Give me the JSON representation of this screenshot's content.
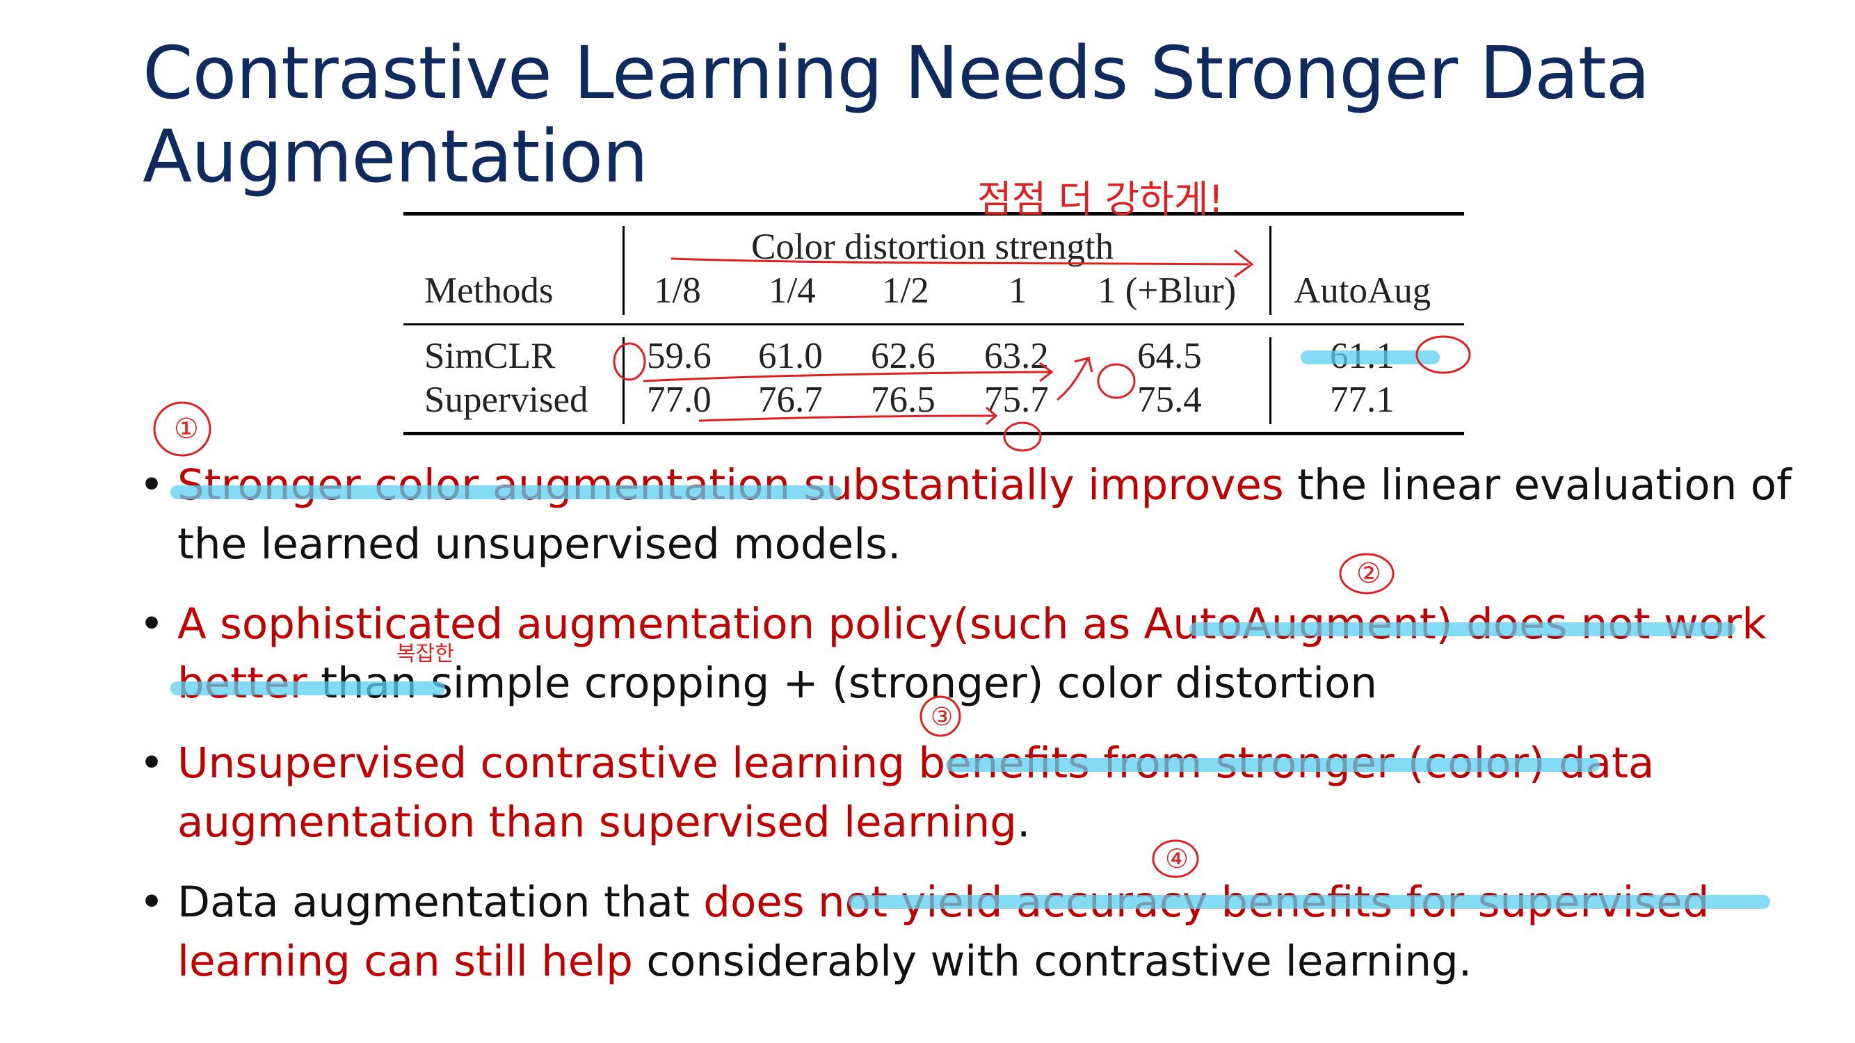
{
  "slide": {
    "title_line1": "Contrastive Learning Needs Stronger Data",
    "title_line2": "Augmentation"
  },
  "table": {
    "group_header": "Color distortion strength",
    "methods_header": "Methods",
    "strength_headers": [
      "1/8",
      "1/4",
      "1/2",
      "1",
      "1 (+Blur)"
    ],
    "autoaug_header": "AutoAug",
    "rows": [
      {
        "method": "SimCLR",
        "values": [
          "59.6",
          "61.0",
          "62.6",
          "63.2",
          "64.5"
        ],
        "autoaug": "61.1"
      },
      {
        "method": "Supervised",
        "values": [
          "77.0",
          "76.7",
          "76.5",
          "75.7",
          "75.4"
        ],
        "autoaug": "77.1"
      }
    ]
  },
  "bullets": [
    [
      {
        "text": "Stronger color augmentation substantially improves",
        "style": "red"
      },
      {
        "text": " the linear evaluation of the learned unsupervised models.",
        "style": "dark"
      }
    ],
    [
      {
        "text": "A sophisticated augmentation policy(such as AutoAugment) does not work better",
        "style": "red"
      },
      {
        "text": " than simple cropping + (stronger) color distortion",
        "style": "dark"
      }
    ],
    [
      {
        "text": "Unsupervised contrastive learning benefits from stronger (color) data augmentation than supervised learning",
        "style": "red"
      },
      {
        "text": ".",
        "style": "dark"
      }
    ],
    [
      {
        "text": "Data augmentation that ",
        "style": "dark"
      },
      {
        "text": "does not yield accuracy benefits for supervised learning can still help",
        "style": "red"
      },
      {
        "text": " considerably with contrastive learning.",
        "style": "dark"
      }
    ]
  ],
  "annotations": {
    "top_note": "점점 더 강하게!",
    "side_note": "복잡한",
    "markers": [
      "①",
      "②",
      "③",
      "④"
    ],
    "ink_color": "#e02020",
    "highlight_color": "#5bcff0"
  }
}
